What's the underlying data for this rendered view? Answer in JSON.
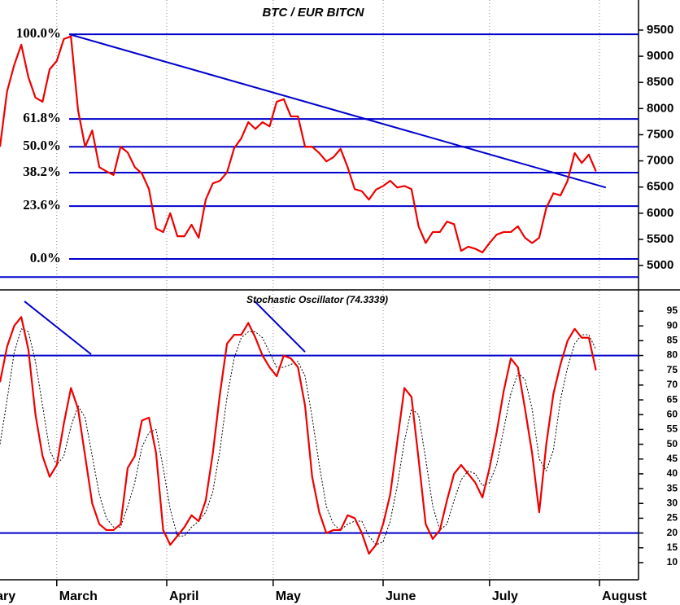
{
  "chart_data": [
    {
      "type": "line",
      "title": "BTC / EUR BITCN",
      "xlim": [
        44,
        224
      ],
      "ylim": [
        4550,
        10075
      ],
      "yticks": [
        5000,
        5500,
        6000,
        6500,
        7000,
        7500,
        8000,
        8500,
        9000,
        9500
      ],
      "levels": [
        {
          "label": "100.0%",
          "value": 9420
        },
        {
          "label": "61.8%",
          "value": 7800
        },
        {
          "label": "50.0%",
          "value": 7270
        },
        {
          "label": "38.2%",
          "value": 6775
        },
        {
          "label": "23.6%",
          "value": 6135
        },
        {
          "label": "0.0%",
          "value": 5125
        },
        {
          "value": 4780
        }
      ],
      "level_color": "#0000cc",
      "trendlines": [
        {
          "x": [
            63.5,
            214.8
          ],
          "y": [
            9420,
            6490
          ]
        }
      ],
      "x": [
        44,
        46,
        48,
        50,
        52,
        54,
        56,
        58,
        60,
        62,
        64,
        66,
        68,
        70,
        72,
        74,
        76,
        78,
        80,
        82,
        84,
        86,
        88,
        90,
        92,
        94,
        96,
        98,
        100,
        102,
        104,
        106,
        108,
        110,
        112,
        114,
        116,
        118,
        120,
        122,
        124,
        126,
        128,
        130,
        132,
        134,
        136,
        138,
        140,
        142,
        144,
        146,
        148,
        150,
        152,
        154,
        156,
        158,
        160,
        162,
        164,
        166,
        168,
        170,
        172,
        174,
        176,
        178,
        180,
        182,
        184,
        186,
        188,
        190,
        192,
        194,
        196,
        198,
        200,
        202,
        204,
        206,
        208,
        210,
        212
      ],
      "series": [
        {
          "color": "#ee0000",
          "values": [
            7270,
            8330,
            8830,
            9220,
            8600,
            8210,
            8130,
            8750,
            8910,
            9330,
            9380,
            7970,
            7270,
            7580,
            6880,
            6800,
            6730,
            7270,
            7160,
            6880,
            6760,
            6460,
            5710,
            5640,
            6000,
            5560,
            5560,
            5780,
            5530,
            6260,
            6570,
            6620,
            6780,
            7240,
            7430,
            7740,
            7610,
            7740,
            7660,
            8130,
            8180,
            7850,
            7850,
            7270,
            7270,
            7150,
            6990,
            7070,
            7230,
            6880,
            6460,
            6420,
            6260,
            6450,
            6520,
            6620,
            6490,
            6520,
            6460,
            5750,
            5430,
            5640,
            5640,
            5840,
            5790,
            5280,
            5360,
            5320,
            5250,
            5430,
            5590,
            5640,
            5640,
            5750,
            5530,
            5430,
            5530,
            6100,
            6380,
            6340,
            6620,
            7150,
            6960,
            7120,
            6800
          ]
        }
      ]
    },
    {
      "type": "line",
      "title": "Stochastic Oscillator (74.3339)",
      "xlim": [
        44,
        224
      ],
      "ylim": [
        4.2,
        101.9
      ],
      "xticks": [
        {
          "value": 32,
          "label": "February"
        },
        {
          "value": 60,
          "label": "March"
        },
        {
          "value": 91,
          "label": "April"
        },
        {
          "value": 121,
          "label": "May"
        },
        {
          "value": 152,
          "label": "June"
        },
        {
          "value": 182,
          "label": "July"
        },
        {
          "value": 213,
          "label": "August"
        }
      ],
      "yticks": [
        10,
        15,
        20,
        25,
        30,
        35,
        40,
        45,
        50,
        55,
        60,
        65,
        70,
        75,
        80,
        85,
        90,
        95
      ],
      "levels": [
        {
          "value": 80
        },
        {
          "value": 20
        }
      ],
      "level_color": "#0000cc",
      "trendlines": [
        {
          "x": [
            50.9,
            69.7
          ],
          "y": [
            98.3,
            80.4
          ]
        },
        {
          "x": [
            115.8,
            130.0
          ],
          "y": [
            98.3,
            81.2
          ]
        }
      ],
      "x": [
        44,
        46,
        48,
        50,
        52,
        54,
        56,
        58,
        60,
        62,
        64,
        66,
        68,
        70,
        72,
        74,
        76,
        78,
        80,
        82,
        84,
        86,
        88,
        90,
        92,
        94,
        96,
        98,
        100,
        102,
        104,
        106,
        108,
        110,
        112,
        114,
        116,
        118,
        120,
        122,
        124,
        126,
        128,
        130,
        132,
        134,
        136,
        138,
        140,
        142,
        144,
        146,
        148,
        150,
        152,
        154,
        156,
        158,
        160,
        162,
        164,
        166,
        168,
        170,
        172,
        174,
        176,
        178,
        180,
        182,
        184,
        186,
        188,
        190,
        192,
        194,
        196,
        198,
        200,
        202,
        204,
        206,
        208,
        210,
        212
      ],
      "series": [
        {
          "color": "#ee0000",
          "values": [
            71,
            83,
            90,
            93,
            82,
            60,
            46,
            39,
            43,
            57,
            69,
            62,
            46,
            30,
            23,
            21,
            21,
            23,
            42,
            46,
            58,
            59,
            47,
            21,
            16,
            19,
            22,
            26,
            24,
            31,
            47,
            67,
            84,
            87,
            87,
            91,
            86,
            80,
            76,
            73,
            80,
            79,
            76,
            63,
            39,
            27,
            20,
            21,
            21,
            26,
            25,
            20,
            13,
            16,
            23,
            33,
            51,
            69,
            66,
            45,
            23,
            18,
            21,
            31,
            40,
            43,
            40,
            37,
            32,
            42,
            54,
            68,
            79,
            76,
            62,
            47,
            27,
            50,
            67,
            77,
            85,
            89,
            86,
            86,
            75
          ]
        },
        {
          "color": "#000000",
          "dashed": true,
          "values": [
            50,
            65,
            81,
            89,
            88,
            78,
            63,
            48,
            43,
            46,
            56,
            63,
            59,
            46,
            33,
            25,
            22,
            22,
            29,
            37,
            49,
            54,
            55,
            42,
            28,
            19,
            19,
            22,
            24,
            27,
            34,
            48,
            66,
            79,
            86,
            88,
            88,
            86,
            81,
            76,
            76,
            77,
            78,
            73,
            59,
            43,
            29,
            23,
            21,
            23,
            24,
            24,
            19,
            16,
            17,
            24,
            36,
            51,
            62,
            60,
            45,
            29,
            21,
            23,
            31,
            38,
            41,
            40,
            36,
            37,
            43,
            55,
            67,
            74,
            72,
            62,
            45,
            41,
            48,
            65,
            76,
            84,
            87,
            87,
            82
          ]
        }
      ]
    }
  ]
}
